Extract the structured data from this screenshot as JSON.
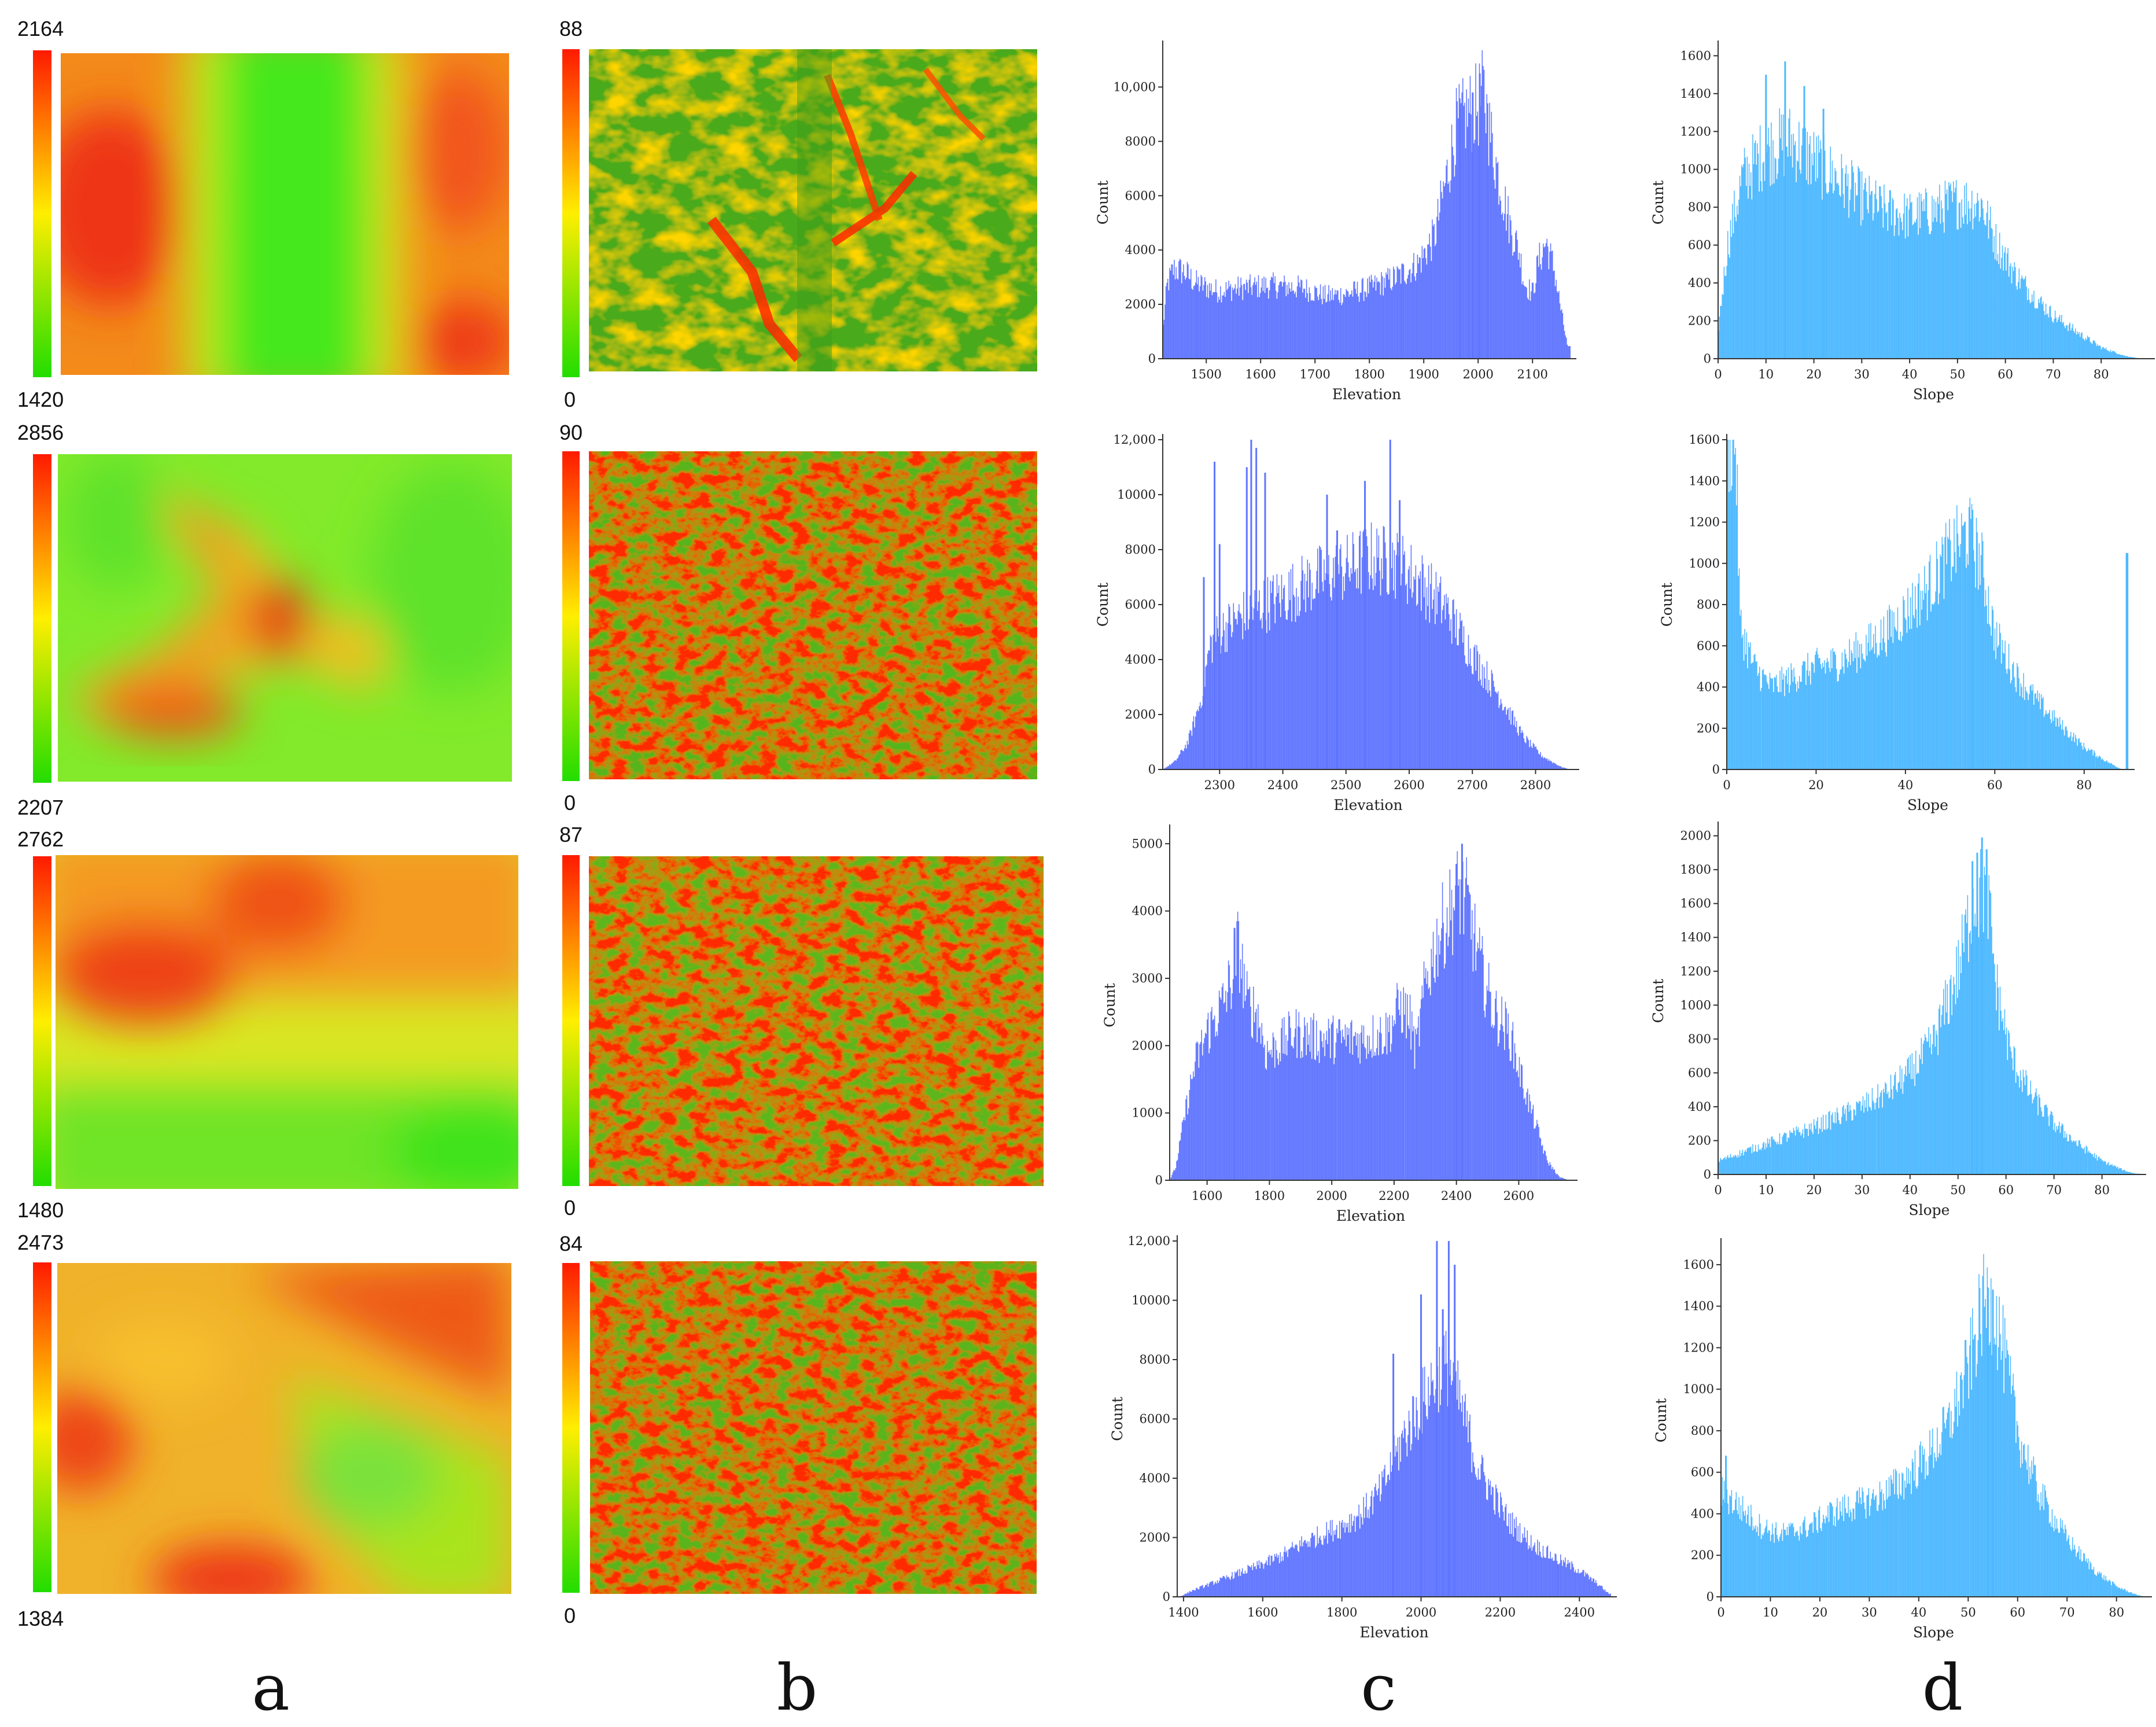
{
  "captions": [
    "a",
    "b",
    "c",
    "d"
  ],
  "rows": [
    {
      "elevation_legend": {
        "max": "2164",
        "min": "1420"
      },
      "slope_legend": {
        "max": "88",
        "min": "0"
      }
    },
    {
      "elevation_legend": {
        "max": "2856",
        "min": "2207"
      },
      "slope_legend": {
        "max": "90",
        "min": "0"
      }
    },
    {
      "elevation_legend": {
        "max": "2762",
        "min": "1480"
      },
      "slope_legend": {
        "max": "87",
        "min": "0"
      }
    },
    {
      "elevation_legend": {
        "max": "2473",
        "min": "1384"
      },
      "slope_legend": {
        "max": "84",
        "min": "0"
      }
    }
  ],
  "legend_colors": {
    "high": "#ff1a00",
    "mid": "#ffee00",
    "low": "#22dd00"
  },
  "chart_data": [
    {
      "type": "bar",
      "title": "",
      "xlabel": "Elevation",
      "ylabel": "Count",
      "color": "#5f75ff",
      "xlim": [
        1420,
        2170
      ],
      "ylim": [
        0,
        11500
      ],
      "xticks": [
        "1500",
        "1600",
        "1700",
        "1800",
        "1900",
        "2000",
        "2100"
      ],
      "xtick_values": [
        1500,
        1600,
        1700,
        1800,
        1900,
        2000,
        2100
      ],
      "yticks": [
        "0",
        "2000",
        "4000",
        "6000",
        "8000",
        "10,000"
      ],
      "ytick_values": [
        0,
        2000,
        4000,
        6000,
        8000,
        10000
      ],
      "profile": [
        [
          1420,
          1000
        ],
        [
          1428,
          2700
        ],
        [
          1440,
          3300
        ],
        [
          1460,
          3200
        ],
        [
          1480,
          2800
        ],
        [
          1520,
          2500
        ],
        [
          1560,
          2600
        ],
        [
          1620,
          2700
        ],
        [
          1680,
          2600
        ],
        [
          1720,
          2300
        ],
        [
          1760,
          2400
        ],
        [
          1800,
          2600
        ],
        [
          1850,
          3000
        ],
        [
          1890,
          3500
        ],
        [
          1920,
          4500
        ],
        [
          1940,
          6500
        ],
        [
          1960,
          8500
        ],
        [
          1980,
          9000
        ],
        [
          2000,
          9300
        ],
        [
          2010,
          9800
        ],
        [
          2020,
          8500
        ],
        [
          2040,
          6500
        ],
        [
          2060,
          4800
        ],
        [
          2075,
          4000
        ],
        [
          2085,
          2800
        ],
        [
          2100,
          2400
        ],
        [
          2110,
          3500
        ],
        [
          2125,
          4300
        ],
        [
          2140,
          3300
        ],
        [
          2155,
          1500
        ],
        [
          2165,
          400
        ]
      ],
      "spikes": [
        [
          2003,
          10500
        ],
        [
          1990,
          9800
        ],
        [
          1967,
          9200
        ],
        [
          2017,
          9400
        ]
      ]
    },
    {
      "type": "bar",
      "title": "",
      "xlabel": "Slope",
      "ylabel": "Count",
      "color": "#4db8ff",
      "xlim": [
        0,
        90
      ],
      "ylim": [
        0,
        1650
      ],
      "xticks": [
        "0",
        "10",
        "20",
        "30",
        "40",
        "50",
        "60",
        "70",
        "80"
      ],
      "xtick_values": [
        0,
        10,
        20,
        30,
        40,
        50,
        60,
        70,
        80
      ],
      "yticks": [
        "0",
        "200",
        "400",
        "600",
        "800",
        "1000",
        "1200",
        "1400",
        "1600"
      ],
      "ytick_values": [
        0,
        200,
        400,
        600,
        800,
        1000,
        1200,
        1400,
        1600
      ],
      "profile": [
        [
          0,
          150
        ],
        [
          2,
          600
        ],
        [
          5,
          950
        ],
        [
          10,
          1100
        ],
        [
          15,
          1150
        ],
        [
          20,
          1050
        ],
        [
          25,
          950
        ],
        [
          30,
          850
        ],
        [
          35,
          780
        ],
        [
          40,
          750
        ],
        [
          45,
          780
        ],
        [
          50,
          830
        ],
        [
          55,
          820
        ],
        [
          58,
          620
        ],
        [
          62,
          450
        ],
        [
          66,
          330
        ],
        [
          70,
          230
        ],
        [
          75,
          140
        ],
        [
          80,
          60
        ],
        [
          85,
          15
        ],
        [
          88,
          2
        ]
      ],
      "spikes": [
        [
          14,
          1570
        ],
        [
          10,
          1500
        ],
        [
          18,
          1440
        ],
        [
          22,
          1320
        ]
      ]
    },
    {
      "type": "bar",
      "title": "",
      "xlabel": "Elevation",
      "ylabel": "Count",
      "color": "#5f75ff",
      "xlim": [
        2210,
        2860
      ],
      "ylim": [
        0,
        12000
      ],
      "xticks": [
        "2300",
        "2400",
        "2500",
        "2600",
        "2700",
        "2800"
      ],
      "xtick_values": [
        2300,
        2400,
        2500,
        2600,
        2700,
        2800
      ],
      "yticks": [
        "0",
        "2000",
        "4000",
        "6000",
        "8000",
        "10000",
        "12,000"
      ],
      "ytick_values": [
        0,
        2000,
        4000,
        6000,
        8000,
        10000,
        12000
      ],
      "profile": [
        [
          2210,
          0
        ],
        [
          2230,
          300
        ],
        [
          2250,
          1000
        ],
        [
          2270,
          2500
        ],
        [
          2285,
          4500
        ],
        [
          2300,
          5000
        ],
        [
          2330,
          5500
        ],
        [
          2360,
          5900
        ],
        [
          2400,
          6300
        ],
        [
          2450,
          6900
        ],
        [
          2500,
          7300
        ],
        [
          2540,
          7700
        ],
        [
          2580,
          7500
        ],
        [
          2620,
          6800
        ],
        [
          2660,
          5800
        ],
        [
          2700,
          4200
        ],
        [
          2740,
          2800
        ],
        [
          2780,
          1200
        ],
        [
          2810,
          500
        ],
        [
          2840,
          100
        ],
        [
          2855,
          0
        ]
      ],
      "spikes": [
        [
          2292,
          11200
        ],
        [
          2350,
          12000
        ],
        [
          2358,
          11700
        ],
        [
          2343,
          11000
        ],
        [
          2372,
          10800
        ],
        [
          2300,
          8200
        ],
        [
          2275,
          7000
        ],
        [
          2486,
          8700
        ],
        [
          2470,
          10000
        ],
        [
          2530,
          10500
        ],
        [
          2570,
          12000
        ],
        [
          2585,
          9800
        ]
      ]
    },
    {
      "type": "bar",
      "title": "",
      "xlabel": "Slope",
      "ylabel": "Count",
      "color": "#4db8ff",
      "xlim": [
        0,
        90
      ],
      "ylim": [
        0,
        1600
      ],
      "xticks": [
        "0",
        "20",
        "40",
        "60",
        "80"
      ],
      "xtick_values": [
        0,
        20,
        40,
        60,
        80
      ],
      "yticks": [
        "0",
        "200",
        "400",
        "600",
        "800",
        "1000",
        "1200",
        "1400",
        "1600"
      ],
      "ytick_values": [
        0,
        200,
        400,
        600,
        800,
        1000,
        1200,
        1400,
        1600
      ],
      "profile": [
        [
          0,
          1600
        ],
        [
          2,
          1600
        ],
        [
          3,
          700
        ],
        [
          6,
          500
        ],
        [
          10,
          400
        ],
        [
          15,
          450
        ],
        [
          20,
          500
        ],
        [
          25,
          520
        ],
        [
          30,
          580
        ],
        [
          35,
          650
        ],
        [
          40,
          760
        ],
        [
          45,
          880
        ],
        [
          50,
          1050
        ],
        [
          54,
          1150
        ],
        [
          57,
          1000
        ],
        [
          60,
          650
        ],
        [
          65,
          450
        ],
        [
          70,
          320
        ],
        [
          75,
          210
        ],
        [
          80,
          110
        ],
        [
          85,
          40
        ],
        [
          88,
          5
        ],
        [
          89,
          0
        ]
      ],
      "spikes": [
        [
          55,
          1260
        ],
        [
          89.5,
          1050
        ],
        [
          89.7,
          1050
        ]
      ]
    },
    {
      "type": "bar",
      "title": "",
      "xlabel": "Elevation",
      "ylabel": "Count",
      "color": "#5f75ff",
      "xlim": [
        1480,
        2770
      ],
      "ylim": [
        0,
        5200
      ],
      "xticks": [
        "1600",
        "1800",
        "2000",
        "2200",
        "2400",
        "2600"
      ],
      "xtick_values": [
        1600,
        1800,
        2000,
        2200,
        2400,
        2600
      ],
      "yticks": [
        "0",
        "1000",
        "2000",
        "3000",
        "4000",
        "5000"
      ],
      "ytick_values": [
        0,
        1000,
        2000,
        3000,
        4000,
        5000
      ],
      "profile": [
        [
          1480,
          0
        ],
        [
          1500,
          200
        ],
        [
          1530,
          1000
        ],
        [
          1560,
          1700
        ],
        [
          1600,
          2200
        ],
        [
          1650,
          2600
        ],
        [
          1680,
          3000
        ],
        [
          1700,
          3500
        ],
        [
          1730,
          2600
        ],
        [
          1760,
          2500
        ],
        [
          1790,
          1900
        ],
        [
          1830,
          2000
        ],
        [
          1880,
          2200
        ],
        [
          1950,
          2100
        ],
        [
          2020,
          2100
        ],
        [
          2100,
          2100
        ],
        [
          2180,
          2200
        ],
        [
          2220,
          2600
        ],
        [
          2250,
          2400
        ],
        [
          2270,
          1900
        ],
        [
          2300,
          2900
        ],
        [
          2340,
          3600
        ],
        [
          2380,
          4000
        ],
        [
          2410,
          4300
        ],
        [
          2440,
          4000
        ],
        [
          2470,
          3300
        ],
        [
          2520,
          2500
        ],
        [
          2570,
          2200
        ],
        [
          2610,
          1500
        ],
        [
          2650,
          900
        ],
        [
          2690,
          300
        ],
        [
          2730,
          50
        ],
        [
          2760,
          0
        ]
      ],
      "spikes": [
        [
          2418,
          5000
        ],
        [
          1688,
          3750
        ],
        [
          2400,
          4700
        ]
      ]
    },
    {
      "type": "bar",
      "title": "",
      "xlabel": "Slope",
      "ylabel": "Count",
      "color": "#4db8ff",
      "xlim": [
        0,
        88
      ],
      "ylim": [
        0,
        2050
      ],
      "xticks": [
        "0",
        "10",
        "20",
        "30",
        "40",
        "50",
        "60",
        "70",
        "80"
      ],
      "xtick_values": [
        0,
        10,
        20,
        30,
        40,
        50,
        60,
        70,
        80
      ],
      "yticks": [
        "0",
        "200",
        "400",
        "600",
        "800",
        "1000",
        "1200",
        "1400",
        "1600",
        "1800",
        "2000"
      ],
      "ytick_values": [
        0,
        200,
        400,
        600,
        800,
        1000,
        1200,
        1400,
        1600,
        1800,
        2000
      ],
      "profile": [
        [
          0,
          80
        ],
        [
          5,
          130
        ],
        [
          10,
          180
        ],
        [
          15,
          230
        ],
        [
          20,
          280
        ],
        [
          25,
          340
        ],
        [
          30,
          400
        ],
        [
          35,
          480
        ],
        [
          40,
          600
        ],
        [
          45,
          780
        ],
        [
          50,
          1200
        ],
        [
          53,
          1600
        ],
        [
          56,
          1700
        ],
        [
          58,
          1100
        ],
        [
          61,
          700
        ],
        [
          65,
          480
        ],
        [
          70,
          300
        ],
        [
          75,
          180
        ],
        [
          80,
          80
        ],
        [
          85,
          20
        ],
        [
          87,
          5
        ]
      ],
      "spikes": [
        [
          55,
          1990
        ],
        [
          54,
          1900
        ],
        [
          53,
          1850
        ]
      ]
    },
    {
      "type": "bar",
      "title": "",
      "xlabel": "Elevation",
      "ylabel": "Count",
      "color": "#5f75ff",
      "xlim": [
        1384,
        2480
      ],
      "ylim": [
        0,
        12000
      ],
      "xticks": [
        "1400",
        "1600",
        "1800",
        "2000",
        "2200",
        "2400"
      ],
      "xtick_values": [
        1400,
        1600,
        1800,
        2000,
        2200,
        2400
      ],
      "yticks": [
        "0",
        "2000",
        "4000",
        "6000",
        "8000",
        "10000",
        "12,000"
      ],
      "ytick_values": [
        0,
        2000,
        4000,
        6000,
        8000,
        10000,
        12000
      ],
      "profile": [
        [
          1390,
          0
        ],
        [
          1420,
          200
        ],
        [
          1480,
          500
        ],
        [
          1540,
          800
        ],
        [
          1600,
          1100
        ],
        [
          1650,
          1400
        ],
        [
          1700,
          1800
        ],
        [
          1750,
          2100
        ],
        [
          1800,
          2400
        ],
        [
          1850,
          2800
        ],
        [
          1900,
          3600
        ],
        [
          1950,
          5200
        ],
        [
          2000,
          6500
        ],
        [
          2040,
          7500
        ],
        [
          2070,
          7800
        ],
        [
          2100,
          6500
        ],
        [
          2140,
          4500
        ],
        [
          2180,
          3500
        ],
        [
          2220,
          2600
        ],
        [
          2280,
          1800
        ],
        [
          2340,
          1300
        ],
        [
          2400,
          900
        ],
        [
          2450,
          400
        ],
        [
          2475,
          100
        ]
      ],
      "spikes": [
        [
          1930,
          8200
        ],
        [
          2040,
          12000
        ],
        [
          2070,
          12000
        ],
        [
          2085,
          11200
        ],
        [
          2000,
          10200
        ],
        [
          2055,
          9700
        ]
      ]
    },
    {
      "type": "bar",
      "title": "",
      "xlabel": "Slope",
      "ylabel": "Count",
      "color": "#4db8ff",
      "xlim": [
        0,
        86
      ],
      "ylim": [
        0,
        1700
      ],
      "xticks": [
        "0",
        "10",
        "20",
        "30",
        "40",
        "50",
        "60",
        "70",
        "80"
      ],
      "xtick_values": [
        0,
        10,
        20,
        30,
        40,
        50,
        60,
        70,
        80
      ],
      "yticks": [
        "0",
        "200",
        "400",
        "600",
        "800",
        "1000",
        "1200",
        "1400",
        "1600"
      ],
      "ytick_values": [
        0,
        200,
        400,
        600,
        800,
        1000,
        1200,
        1400,
        1600
      ],
      "profile": [
        [
          0,
          500
        ],
        [
          3,
          450
        ],
        [
          8,
          340
        ],
        [
          12,
          300
        ],
        [
          18,
          340
        ],
        [
          22,
          400
        ],
        [
          27,
          440
        ],
        [
          32,
          480
        ],
        [
          37,
          560
        ],
        [
          42,
          680
        ],
        [
          46,
          820
        ],
        [
          50,
          1100
        ],
        [
          53,
          1400
        ],
        [
          55,
          1420
        ],
        [
          57,
          1200
        ],
        [
          60,
          800
        ],
        [
          64,
          520
        ],
        [
          68,
          350
        ],
        [
          72,
          220
        ],
        [
          76,
          120
        ],
        [
          80,
          50
        ],
        [
          84,
          10
        ],
        [
          86,
          0
        ]
      ],
      "spikes": [
        [
          1,
          680
        ],
        [
          54,
          1490
        ],
        [
          55,
          1480
        ]
      ]
    }
  ]
}
